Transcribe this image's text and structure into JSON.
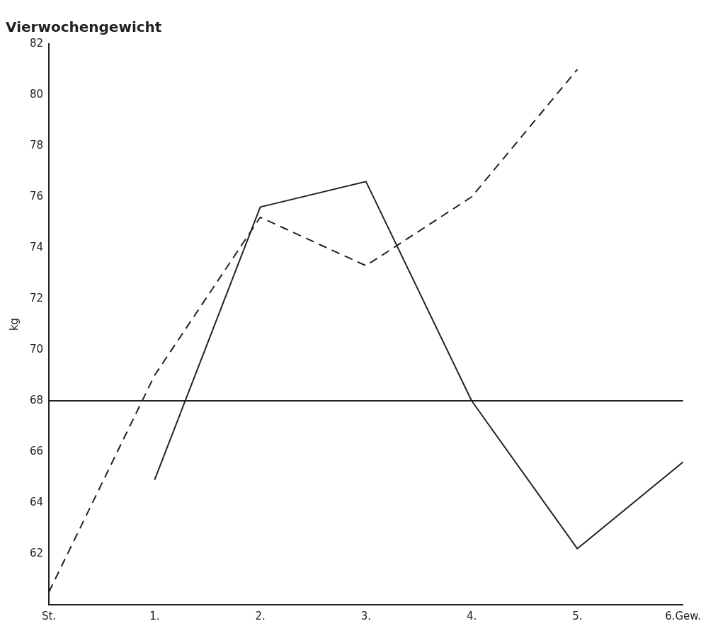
{
  "chart_data": {
    "type": "line",
    "title": "Vierwochengewicht",
    "ylabel": "kg",
    "categories": [
      "St.",
      "1.",
      "2.",
      "3.",
      "4.",
      "5.",
      "6.Gew."
    ],
    "series": [
      {
        "color": "#222222",
        "values": [
          60.5,
          69,
          75.2,
          73.3,
          76,
          81,
          null
        ],
        "line_style": "dashed"
      },
      {
        "color": "#222222",
        "values": [
          null,
          64.9,
          75.6,
          76.6,
          68,
          62.2,
          65.6
        ],
        "line_style": "solid"
      }
    ],
    "ylim": [
      60,
      82
    ],
    "yticks": [
      62,
      64,
      66,
      68,
      70,
      72,
      74,
      76,
      78,
      80,
      82
    ],
    "ref_lines": [
      {
        "axis": "y",
        "value": 68,
        "color": "#222222"
      }
    ],
    "grid": false,
    "legend": false,
    "marker": "none"
  }
}
